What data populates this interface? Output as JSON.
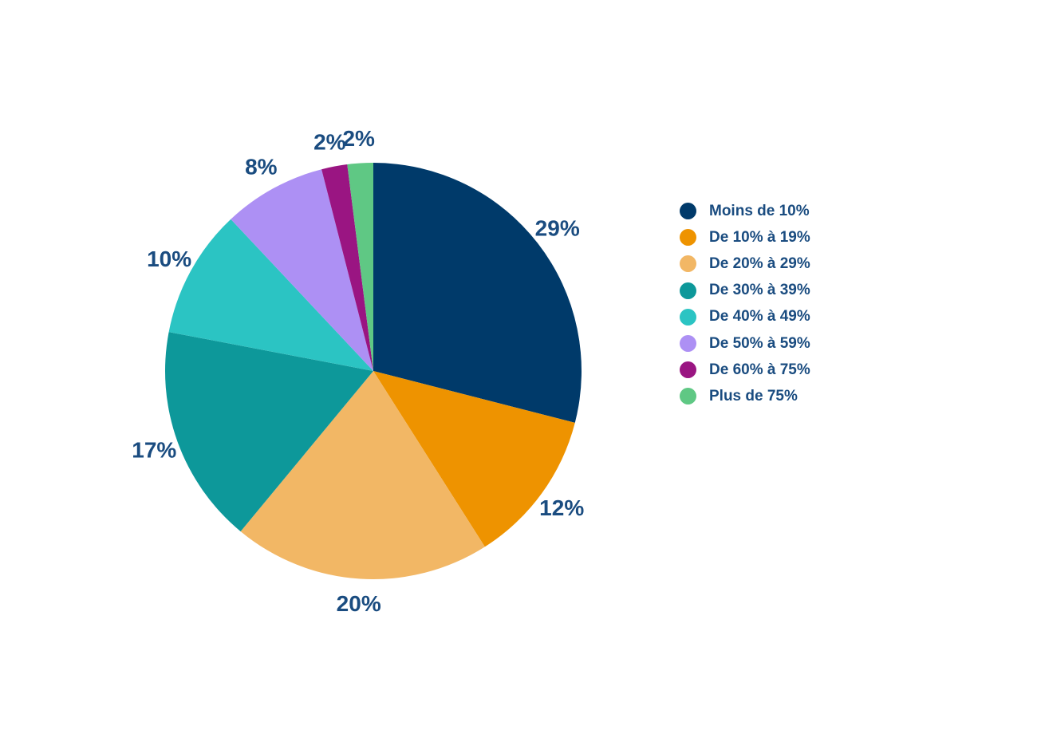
{
  "page": {
    "background_color": "#ffffff",
    "label_text_color": "#1a4c80"
  },
  "chart_data": {
    "type": "pie",
    "title": "",
    "legend_position": "right",
    "start_angle_deg": 0,
    "direction": "clockwise",
    "slice_label_color": "#1a4c80",
    "slices": [
      {
        "label": "Moins de 10%",
        "value": 29,
        "display": "29%",
        "color": "#003a6a"
      },
      {
        "label": "De 10% à 19%",
        "value": 12,
        "display": "12%",
        "color": "#ee9300"
      },
      {
        "label": "De 20% à 29%",
        "value": 20,
        "display": "20%",
        "color": "#f2b765"
      },
      {
        "label": "De 30% à 39%",
        "value": 17,
        "display": "17%",
        "color": "#0d989a"
      },
      {
        "label": "De 40% à 49%",
        "value": 10,
        "display": "10%",
        "color": "#2bc4c3"
      },
      {
        "label": "De 50% à 59%",
        "value": 8,
        "display": "8%",
        "color": "#ad90f4"
      },
      {
        "label": "De 60% à 75%",
        "value": 2,
        "display": "2%",
        "color": "#9a1582"
      },
      {
        "label": "Plus de 75%",
        "value": 2,
        "display": "2%",
        "color": "#5fc884"
      }
    ]
  }
}
